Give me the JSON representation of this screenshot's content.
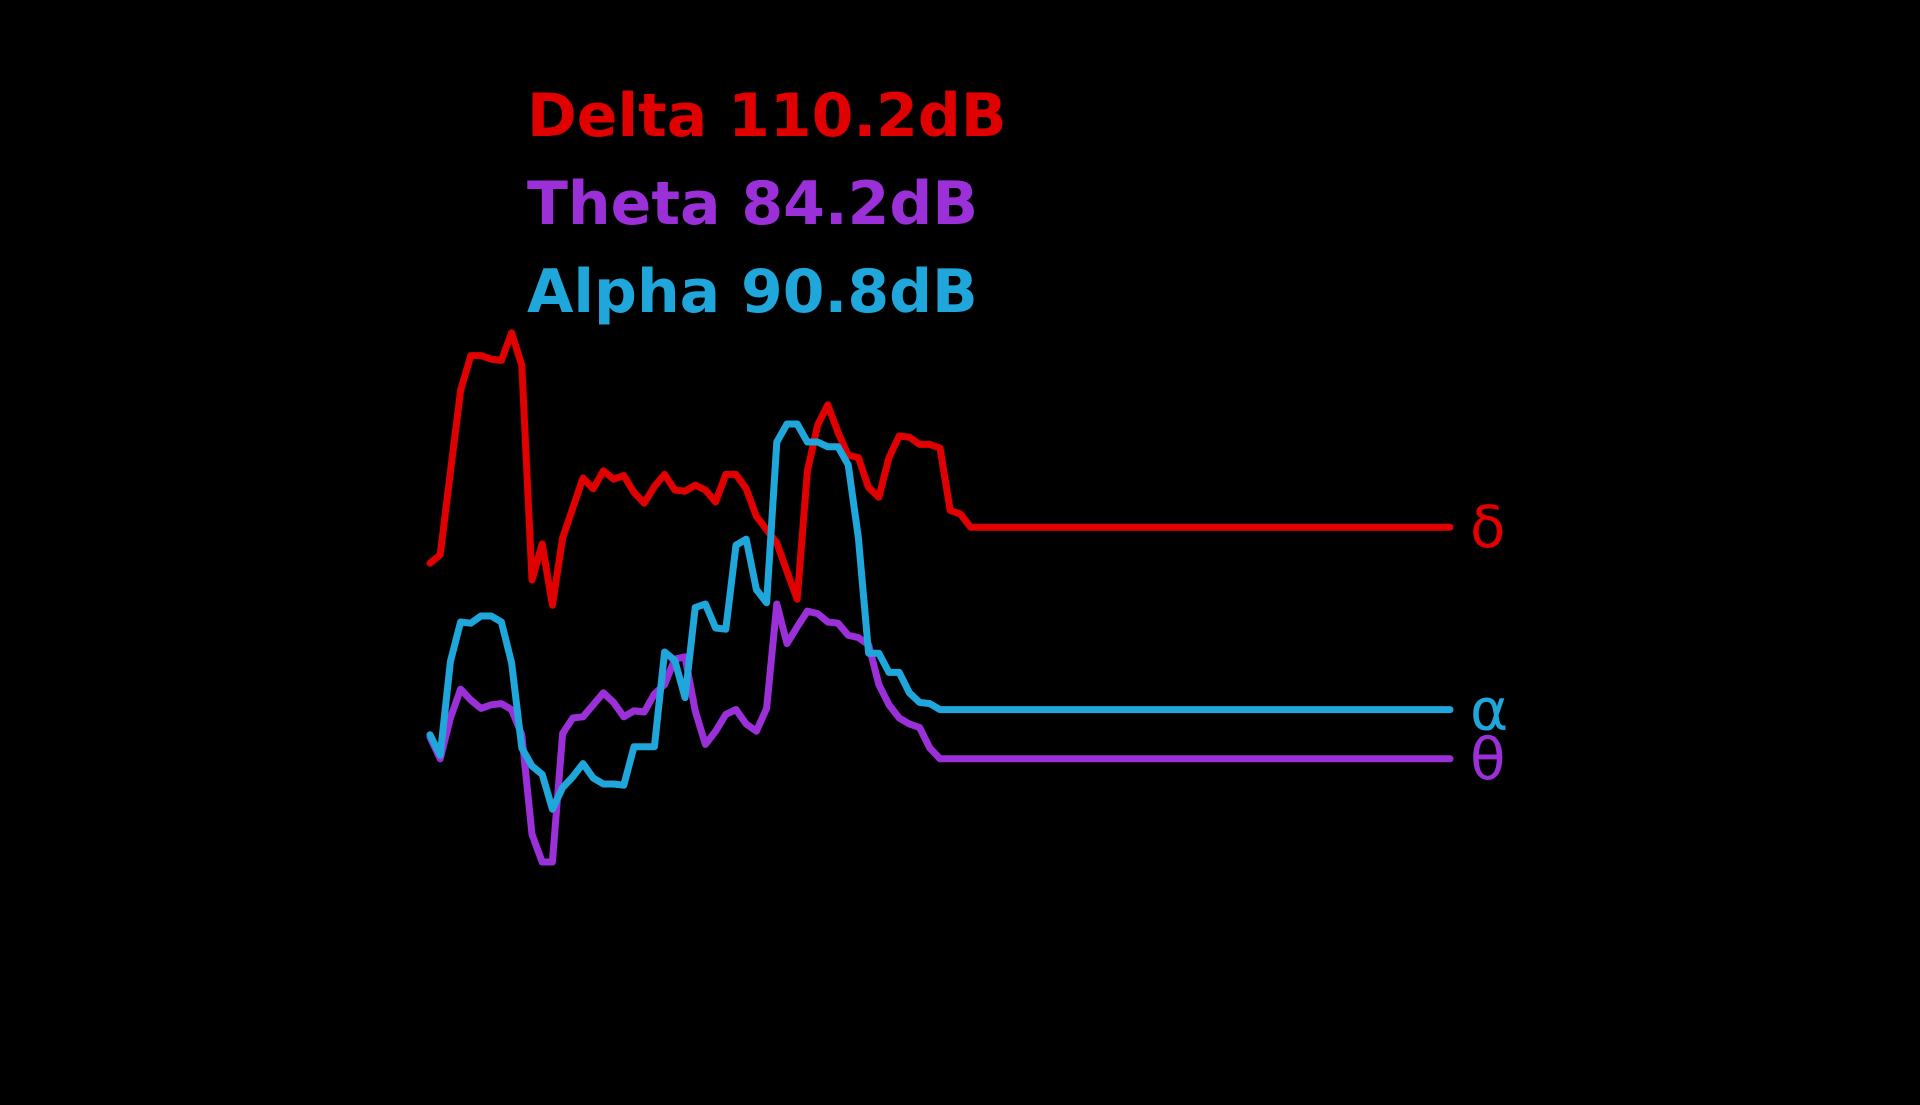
{
  "colors": {
    "background": "#000000",
    "delta": "#E00000",
    "theta": "#9B30D9",
    "alpha": "#1FA6DA"
  },
  "legend": [
    {
      "key": "delta",
      "text": "Delta 110.2dB"
    },
    {
      "key": "theta",
      "text": "Theta 84.2dB"
    },
    {
      "key": "alpha",
      "text": "Alpha 90.8dB"
    }
  ],
  "chart_data": {
    "type": "line",
    "title": "",
    "xlabel": "",
    "ylabel": "",
    "grid": false,
    "axes_visible": false,
    "legend_placement": "top-left",
    "x": [
      0,
      1,
      2,
      3,
      4,
      5,
      6,
      7,
      8,
      9,
      10,
      11,
      12,
      13,
      14,
      15,
      16,
      17,
      18,
      19,
      20,
      21,
      22,
      23,
      24,
      25,
      26,
      27,
      28,
      29,
      30,
      31,
      32,
      33,
      34,
      35,
      36,
      37,
      38,
      39,
      40,
      41,
      42,
      43,
      44,
      45,
      46,
      47,
      48,
      49,
      50,
      51,
      52,
      53,
      54,
      55,
      56,
      57,
      58,
      59,
      60,
      61,
      62,
      63,
      64,
      65,
      66,
      67,
      68,
      69,
      70,
      71,
      72,
      73,
      74,
      75,
      76,
      77,
      78,
      79,
      80,
      81,
      82,
      83,
      84,
      85,
      86,
      87,
      88,
      89,
      90,
      91,
      92,
      93,
      94,
      95,
      96,
      97,
      98,
      99,
      100
    ],
    "series": [
      {
        "key": "delta",
        "name": "δ",
        "values": [
          61.4,
          62.1,
          69.0,
          75.8,
          78.7,
          78.7,
          78.4,
          78.3,
          80.6,
          77.9,
          60.0,
          63.0,
          57.9,
          63.5,
          66.0,
          68.5,
          67.6,
          69.1,
          68.4,
          68.7,
          67.3,
          66.4,
          67.8,
          68.8,
          67.5,
          67.4,
          67.9,
          67.5,
          66.5,
          68.8,
          68.8,
          67.6,
          65.3,
          64.2,
          63.1,
          60.7,
          58.4,
          69.1,
          72.9,
          74.6,
          72.3,
          70.4,
          70.2,
          67.7,
          66.9,
          70.2,
          72.0,
          71.9,
          71.3,
          71.3,
          71.0,
          65.8,
          65.5,
          64.4,
          64.4,
          64.4,
          64.4,
          64.4,
          64.4,
          64.4,
          64.4,
          64.4,
          64.4,
          64.4,
          64.4,
          64.4,
          64.4,
          64.4,
          64.4,
          64.4,
          64.4,
          64.4,
          64.4,
          64.4,
          64.4,
          64.4,
          64.4,
          64.4,
          64.4,
          64.4,
          64.4,
          64.4,
          64.4,
          64.4,
          64.4,
          64.4,
          64.4,
          64.4,
          64.4,
          64.4,
          64.4,
          64.4,
          64.4,
          64.4,
          64.4,
          64.4,
          64.4,
          64.4,
          64.4,
          64.4,
          64.4
        ]
      },
      {
        "key": "theta",
        "name": "θ",
        "values": [
          46.9,
          45.1,
          48.5,
          50.9,
          50.0,
          49.3,
          49.6,
          49.7,
          49.2,
          47.1,
          38.8,
          36.5,
          36.5,
          47.2,
          48.5,
          48.6,
          49.6,
          50.6,
          49.8,
          48.6,
          49.1,
          49.0,
          50.5,
          51.3,
          53.4,
          53.6,
          49.1,
          46.3,
          47.4,
          48.8,
          49.2,
          48.0,
          47.4,
          49.3,
          58.0,
          54.7,
          56.1,
          57.4,
          57.2,
          56.5,
          56.4,
          55.4,
          55.2,
          54.6,
          51.3,
          49.6,
          48.5,
          48.0,
          47.7,
          46.0,
          45.1,
          45.1,
          45.1,
          45.1,
          45.1,
          45.1,
          45.1,
          45.1,
          45.1,
          45.1,
          45.1,
          45.1,
          45.1,
          45.1,
          45.1,
          45.1,
          45.1,
          45.1,
          45.1,
          45.1,
          45.1,
          45.1,
          45.1,
          45.1,
          45.1,
          45.1,
          45.1,
          45.1,
          45.1,
          45.1,
          45.1,
          45.1,
          45.1,
          45.1,
          45.1,
          45.1,
          45.1,
          45.1,
          45.1,
          45.1,
          45.1,
          45.1,
          45.1,
          45.1,
          45.1,
          45.1,
          45.1,
          45.1,
          45.1,
          45.1,
          45.1
        ]
      },
      {
        "key": "alpha",
        "name": "α",
        "values": [
          47.1,
          45.4,
          53.2,
          56.5,
          56.4,
          57.0,
          57.0,
          56.5,
          53.1,
          46.0,
          44.5,
          43.8,
          40.9,
          42.7,
          43.6,
          44.7,
          43.5,
          43.0,
          43.0,
          42.9,
          46.1,
          46.1,
          46.1,
          54.0,
          53.3,
          50.2,
          57.7,
          58.0,
          56.0,
          55.9,
          62.9,
          63.4,
          59.2,
          58.1,
          71.5,
          73.0,
          73.0,
          71.5,
          71.5,
          71.1,
          71.1,
          69.6,
          63.5,
          53.9,
          53.9,
          52.3,
          52.3,
          50.6,
          49.8,
          49.7,
          49.2,
          49.2,
          49.2,
          49.2,
          49.2,
          49.2,
          49.2,
          49.2,
          49.2,
          49.2,
          49.2,
          49.2,
          49.2,
          49.2,
          49.2,
          49.2,
          49.2,
          49.2,
          49.2,
          49.2,
          49.2,
          49.2,
          49.2,
          49.2,
          49.2,
          49.2,
          49.2,
          49.2,
          49.2,
          49.2,
          49.2,
          49.2,
          49.2,
          49.2,
          49.2,
          49.2,
          49.2,
          49.2,
          49.2,
          49.2,
          49.2,
          49.2,
          49.2,
          49.2,
          49.2,
          49.2,
          49.2,
          49.2,
          49.2,
          49.2,
          49.2
        ]
      }
    ],
    "ylim": [
      30,
      90
    ],
    "xlim": [
      0,
      100
    ]
  }
}
